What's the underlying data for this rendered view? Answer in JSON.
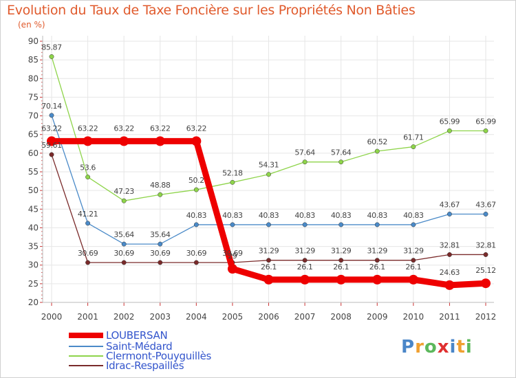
{
  "header": {
    "title": "Evolution du Taux de Taxe Foncière sur les Propriétés Non Bâties",
    "subtitle": "(en %)"
  },
  "logo": {
    "text": "Proxiti",
    "colors": [
      "#4a86c8",
      "#f0a030",
      "#5cb85c",
      "#e03030",
      "#4a86c8",
      "#f0a030",
      "#5cb85c"
    ]
  },
  "chart_data": {
    "type": "line",
    "title": "Evolution du Taux de Taxe Foncière sur les Propriétés Non Bâties",
    "subtitle": "(en %)",
    "xlabel": "",
    "ylabel": "",
    "ylim": [
      20,
      90
    ],
    "yticks": [
      20,
      25,
      30,
      35,
      40,
      45,
      50,
      55,
      60,
      65,
      70,
      75,
      80,
      85,
      90
    ],
    "x": [
      "2000",
      "2001",
      "2002",
      "2003",
      "2004",
      "2005",
      "2006",
      "2007",
      "2008",
      "2009",
      "2010",
      "2011",
      "2012"
    ],
    "grid": true,
    "legend_position": "bottom-left",
    "series": [
      {
        "name": "LOUBERSAN",
        "color": "#ee0000",
        "values": [
          63.22,
          63.22,
          63.22,
          63.22,
          63.22,
          29,
          26.1,
          26.1,
          26.1,
          26.1,
          26.1,
          24.63,
          25.12
        ],
        "labels": [
          "63.22",
          "63.22",
          "63.22",
          "63.22",
          "63.22",
          "29",
          "26.1",
          "26.1",
          "26.1",
          "26.1",
          "26.1",
          "24.63",
          "25.12"
        ]
      },
      {
        "name": "Saint-Médard",
        "color": "#4a8ac8",
        "values": [
          70.14,
          41.21,
          35.64,
          35.64,
          40.83,
          40.83,
          40.83,
          40.83,
          40.83,
          40.83,
          40.83,
          43.67,
          43.67
        ],
        "labels": [
          "70.14",
          "41.21",
          "35.64",
          "35.64",
          "40.83",
          "40.83",
          "40.83",
          "40.83",
          "40.83",
          "40.83",
          "40.83",
          "43.67",
          "43.67"
        ]
      },
      {
        "name": "Clermont-Pouyguillès",
        "color": "#8ed44a",
        "values": [
          85.87,
          53.6,
          47.23,
          48.88,
          50.2,
          52.18,
          54.31,
          57.64,
          57.64,
          60.52,
          61.71,
          65.99,
          65.99
        ],
        "labels": [
          "85.87",
          "53.6",
          "47.23",
          "48.88",
          "50.2",
          "52.18",
          "54.31",
          "57.64",
          "57.64",
          "60.52",
          "61.71",
          "65.99",
          "65.99"
        ]
      },
      {
        "name": "Idrac-Respaillès",
        "color": "#7a2a2a",
        "values": [
          59.61,
          30.69,
          30.69,
          30.69,
          30.69,
          30.69,
          31.29,
          31.29,
          31.29,
          31.29,
          31.29,
          32.81,
          32.81
        ],
        "labels": [
          "59.61",
          "30.69",
          "30.69",
          "30.69",
          "30.69",
          "30.69",
          "31.29",
          "31.29",
          "31.29",
          "31.29",
          "31.29",
          "32.81",
          "32.81"
        ]
      }
    ]
  }
}
